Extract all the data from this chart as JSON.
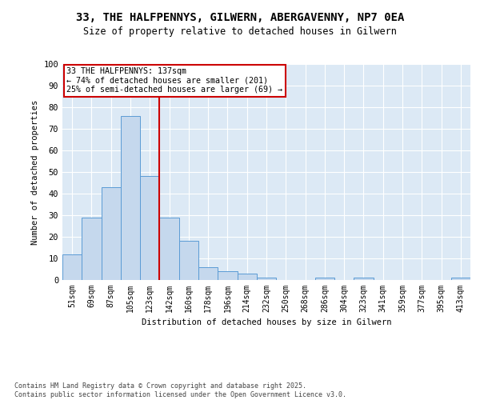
{
  "title_line1": "33, THE HALFPENNYS, GILWERN, ABERGAVENNY, NP7 0EA",
  "title_line2": "Size of property relative to detached houses in Gilwern",
  "xlabel": "Distribution of detached houses by size in Gilwern",
  "ylabel": "Number of detached properties",
  "categories": [
    "51sqm",
    "69sqm",
    "87sqm",
    "105sqm",
    "123sqm",
    "142sqm",
    "160sqm",
    "178sqm",
    "196sqm",
    "214sqm",
    "232sqm",
    "250sqm",
    "268sqm",
    "286sqm",
    "304sqm",
    "323sqm",
    "341sqm",
    "359sqm",
    "377sqm",
    "395sqm",
    "413sqm"
  ],
  "values": [
    12,
    29,
    43,
    76,
    48,
    29,
    18,
    6,
    4,
    3,
    1,
    0,
    0,
    1,
    0,
    1,
    0,
    0,
    0,
    0,
    1
  ],
  "bar_color": "#c5d8ed",
  "bar_edge_color": "#5b9bd5",
  "ref_line_color": "#cc0000",
  "ref_line_x": 4.5,
  "annotation_line1": "33 THE HALFPENNYS: 137sqm",
  "annotation_line2": "← 74% of detached houses are smaller (201)",
  "annotation_line3": "25% of semi-detached houses are larger (69) →",
  "annotation_box_color": "#ffffff",
  "annotation_box_edge_color": "#cc0000",
  "ylim": [
    0,
    100
  ],
  "yticks": [
    0,
    10,
    20,
    30,
    40,
    50,
    60,
    70,
    80,
    90,
    100
  ],
  "plot_bg_color": "#dce9f5",
  "footer_line1": "Contains HM Land Registry data © Crown copyright and database right 2025.",
  "footer_line2": "Contains public sector information licensed under the Open Government Licence v3.0."
}
